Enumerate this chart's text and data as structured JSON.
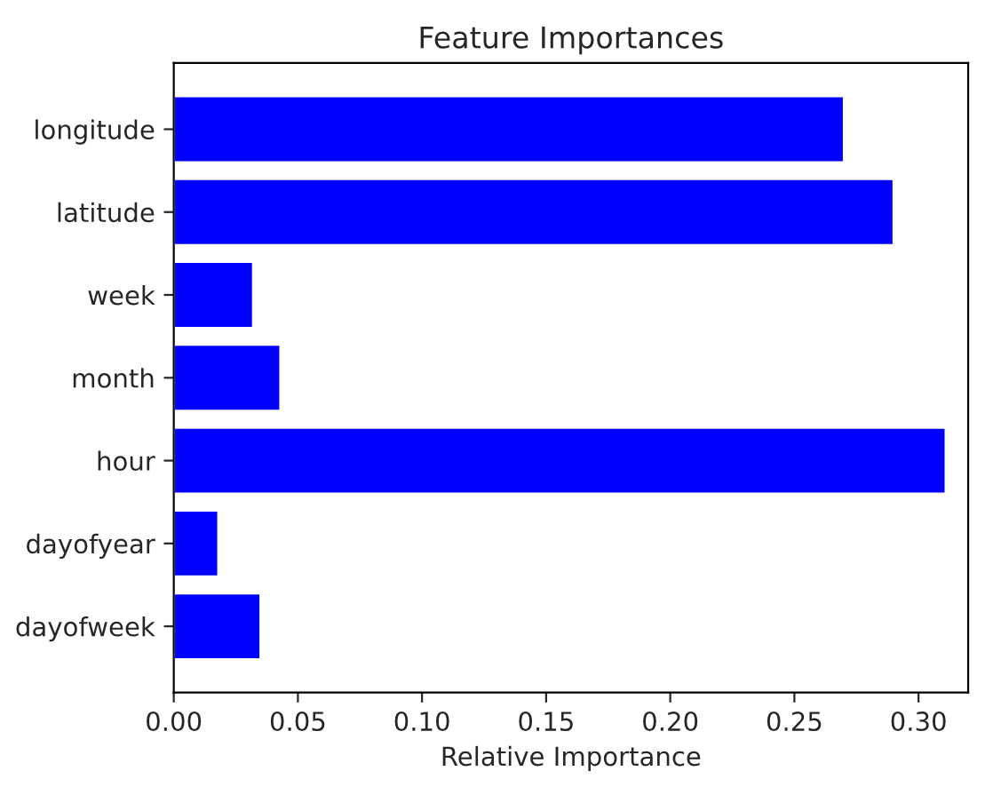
{
  "chart_data": {
    "type": "bar",
    "orientation": "horizontal",
    "title": "Feature Importances",
    "xlabel": "Relative Importance",
    "categories": [
      "longitude",
      "latitude",
      "week",
      "month",
      "hour",
      "dayofyear",
      "dayofweek"
    ],
    "values": [
      0.27,
      0.29,
      0.032,
      0.043,
      0.311,
      0.018,
      0.035
    ],
    "color": "#0000ff",
    "xlim": [
      0,
      0.32
    ],
    "xticks": [
      {
        "value": 0,
        "label": "0.00"
      },
      {
        "value": 0.05,
        "label": "0.05"
      },
      {
        "value": 0.1,
        "label": "0.10"
      },
      {
        "value": 0.15,
        "label": "0.15"
      },
      {
        "value": 0.2,
        "label": "0.20"
      },
      {
        "value": 0.25,
        "label": "0.25"
      },
      {
        "value": 0.3,
        "label": "0.30"
      }
    ],
    "grid": false,
    "legend": false
  }
}
